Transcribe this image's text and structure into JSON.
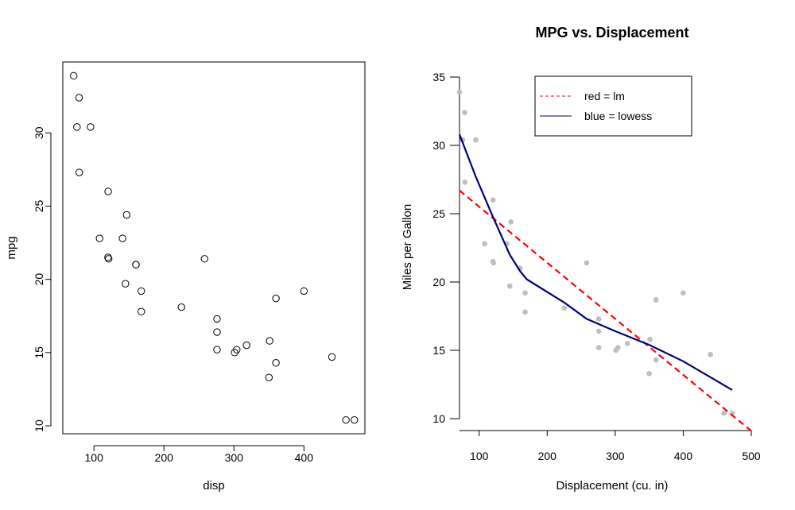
{
  "chart_data": [
    {
      "type": "scatter",
      "title": "",
      "xlabel": "disp",
      "ylabel": "mpg",
      "xlim": [
        55.5,
        487.1
      ],
      "ylim": [
        9.46,
        34.84
      ],
      "xticks": [
        100,
        200,
        300,
        400
      ],
      "yticks": [
        10,
        15,
        20,
        25,
        30
      ],
      "marker": "open-circle",
      "grid": false,
      "series": [
        {
          "points": [
            [
              160,
              21.0
            ],
            [
              160,
              21.0
            ],
            [
              108,
              22.8
            ],
            [
              258,
              21.4
            ],
            [
              360,
              18.7
            ],
            [
              225,
              18.1
            ],
            [
              360,
              14.3
            ],
            [
              146.7,
              24.4
            ],
            [
              140.8,
              22.8
            ],
            [
              167.6,
              19.2
            ],
            [
              167.6,
              17.8
            ],
            [
              275.8,
              16.4
            ],
            [
              275.8,
              17.3
            ],
            [
              275.8,
              15.2
            ],
            [
              472,
              10.4
            ],
            [
              460,
              10.4
            ],
            [
              440,
              14.7
            ],
            [
              78.7,
              32.4
            ],
            [
              75.7,
              30.4
            ],
            [
              71.1,
              33.9
            ],
            [
              120.1,
              21.5
            ],
            [
              318,
              15.5
            ],
            [
              304,
              15.2
            ],
            [
              350,
              13.3
            ],
            [
              400,
              19.2
            ],
            [
              79,
              27.3
            ],
            [
              120.3,
              26.0
            ],
            [
              95.1,
              30.4
            ],
            [
              351,
              15.8
            ],
            [
              145,
              19.7
            ],
            [
              301,
              15.0
            ],
            [
              121,
              21.4
            ]
          ]
        }
      ]
    },
    {
      "type": "scatter",
      "title": "MPG vs. Displacement",
      "xlabel": "Displacement (cu. in)",
      "ylabel": "Miles per Gallon",
      "xlim": [
        71.1,
        500
      ],
      "ylim": [
        10,
        35
      ],
      "xticks": [
        100,
        200,
        300,
        400,
        500
      ],
      "yticks": [
        10,
        15,
        20,
        25,
        30,
        35
      ],
      "grid": false,
      "legend": {
        "placement": "top",
        "entries": [
          {
            "label": "red = lm",
            "color": "#ff0000",
            "style": "dashed"
          },
          {
            "label": "blue = lowess",
            "color": "#000080",
            "style": "solid"
          }
        ]
      },
      "colors": {
        "points": "#bebebe",
        "lm": "#ff0000",
        "lowess": "#000080"
      },
      "series": [
        {
          "style": "filled-point",
          "points": [
            [
              160,
              21.0
            ],
            [
              160,
              21.0
            ],
            [
              108,
              22.8
            ],
            [
              258,
              21.4
            ],
            [
              360,
              18.7
            ],
            [
              225,
              18.1
            ],
            [
              360,
              14.3
            ],
            [
              146.7,
              24.4
            ],
            [
              140.8,
              22.8
            ],
            [
              167.6,
              19.2
            ],
            [
              167.6,
              17.8
            ],
            [
              275.8,
              16.4
            ],
            [
              275.8,
              17.3
            ],
            [
              275.8,
              15.2
            ],
            [
              472,
              10.4
            ],
            [
              460,
              10.4
            ],
            [
              440,
              14.7
            ],
            [
              78.7,
              32.4
            ],
            [
              75.7,
              30.4
            ],
            [
              71.1,
              33.9
            ],
            [
              120.1,
              21.5
            ],
            [
              318,
              15.5
            ],
            [
              304,
              15.2
            ],
            [
              350,
              13.3
            ],
            [
              400,
              19.2
            ],
            [
              79,
              27.3
            ],
            [
              120.3,
              26.0
            ],
            [
              95.1,
              30.4
            ],
            [
              351,
              15.8
            ],
            [
              145,
              19.7
            ],
            [
              301,
              15.0
            ],
            [
              121,
              21.4
            ]
          ]
        },
        {
          "style": "dashed-line",
          "points": [
            [
              71.1,
              26.7
            ],
            [
              500,
              9.1
            ]
          ]
        },
        {
          "style": "solid-line",
          "points": [
            [
              71.1,
              30.8
            ],
            [
              95,
              27.7
            ],
            [
              120,
              24.8
            ],
            [
              145,
              22.0
            ],
            [
              160,
              20.8
            ],
            [
              170,
              20.2
            ],
            [
              225,
              18.5
            ],
            [
              258,
              17.3
            ],
            [
              300,
              16.4
            ],
            [
              350,
              15.4
            ],
            [
              400,
              14.2
            ],
            [
              472,
              12.1
            ]
          ]
        }
      ]
    }
  ]
}
